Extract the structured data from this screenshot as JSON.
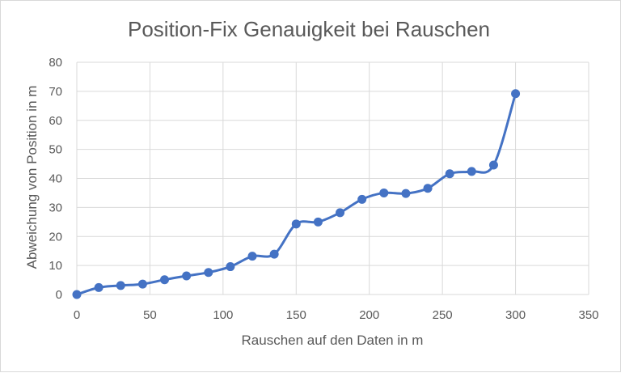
{
  "chart_data": {
    "type": "scatter",
    "title": "Position-Fix Genauigkeit bei Rauschen",
    "xlabel": "Rauschen auf den Daten in m",
    "ylabel": "Abweichung von Position in m",
    "xlim": [
      0,
      350
    ],
    "ylim": [
      0,
      80
    ],
    "xticks": [
      0,
      50,
      100,
      150,
      200,
      250,
      300,
      350
    ],
    "yticks": [
      0,
      10,
      20,
      30,
      40,
      50,
      60,
      70,
      80
    ],
    "grid": true,
    "smooth_line": true,
    "colors": {
      "series": "#4472c4",
      "grid": "#d9d9d9",
      "text": "#595959"
    },
    "series": [
      {
        "points": [
          {
            "x": 0,
            "y": 0
          },
          {
            "x": 15,
            "y": 2.4
          },
          {
            "x": 30,
            "y": 3.1
          },
          {
            "x": 45,
            "y": 3.6
          },
          {
            "x": 60,
            "y": 5.1
          },
          {
            "x": 75,
            "y": 6.4
          },
          {
            "x": 90,
            "y": 7.6
          },
          {
            "x": 105,
            "y": 9.6
          },
          {
            "x": 120,
            "y": 13.2
          },
          {
            "x": 135,
            "y": 13.9
          },
          {
            "x": 150,
            "y": 24.3
          },
          {
            "x": 165,
            "y": 25.0
          },
          {
            "x": 180,
            "y": 28.2
          },
          {
            "x": 195,
            "y": 32.8
          },
          {
            "x": 210,
            "y": 35.0
          },
          {
            "x": 225,
            "y": 34.8
          },
          {
            "x": 240,
            "y": 36.6
          },
          {
            "x": 255,
            "y": 41.6
          },
          {
            "x": 270,
            "y": 42.4
          },
          {
            "x": 285,
            "y": 44.6
          },
          {
            "x": 300,
            "y": 69.2
          }
        ]
      }
    ]
  }
}
